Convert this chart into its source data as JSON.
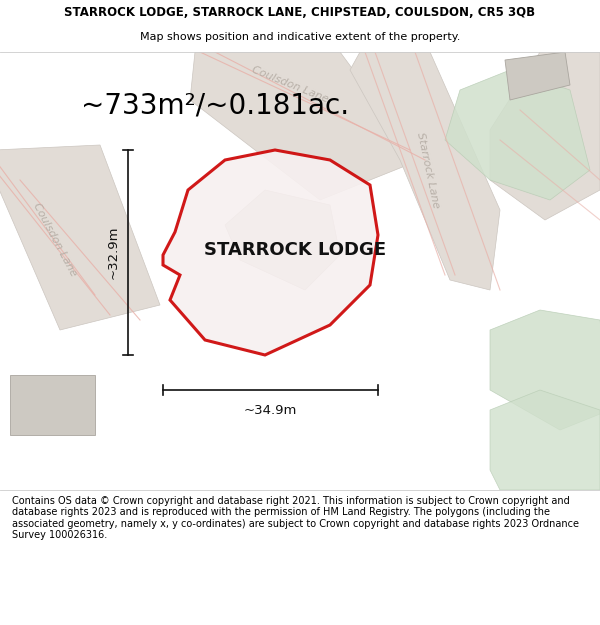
{
  "title_line1": "STARROCK LODGE, STARROCK LANE, CHIPSTEAD, COULSDON, CR5 3QB",
  "title_line2": "Map shows position and indicative extent of the property.",
  "area_text": "~733m²/~0.181ac.",
  "property_label": "STARROCK LODGE",
  "dim_height": "~32.9m",
  "dim_width": "~34.9m",
  "footer_text": "Contains OS data © Crown copyright and database right 2021. This information is subject to Crown copyright and database rights 2023 and is reproduced with the permission of HM Land Registry. The polygons (including the associated geometry, namely x, y co-ordinates) are subject to Crown copyright and database rights 2023 Ordnance Survey 100026316.",
  "title_fontsize": 8.5,
  "footer_fontsize": 7.0,
  "area_fontsize": 20,
  "label_fontsize": 13,
  "dim_fontsize": 9.5,
  "road_label_fontsize": 8,
  "map_bg": "#f2f0ed",
  "property_fill": "#f7f0f0",
  "property_edge": "#cc0000",
  "building_fill": "#cdc9c2",
  "building_edge": "#aaa69f",
  "green_fill": "#d0e0cc",
  "green_edge": "#b8ccb4",
  "road_fill": "#e2dcd6",
  "road_edge": "#ccc6c0",
  "road_line_color": "#e8b0a8",
  "road_label_color": "#b8b0a8",
  "dim_color": "#111111",
  "white": "#ffffff"
}
